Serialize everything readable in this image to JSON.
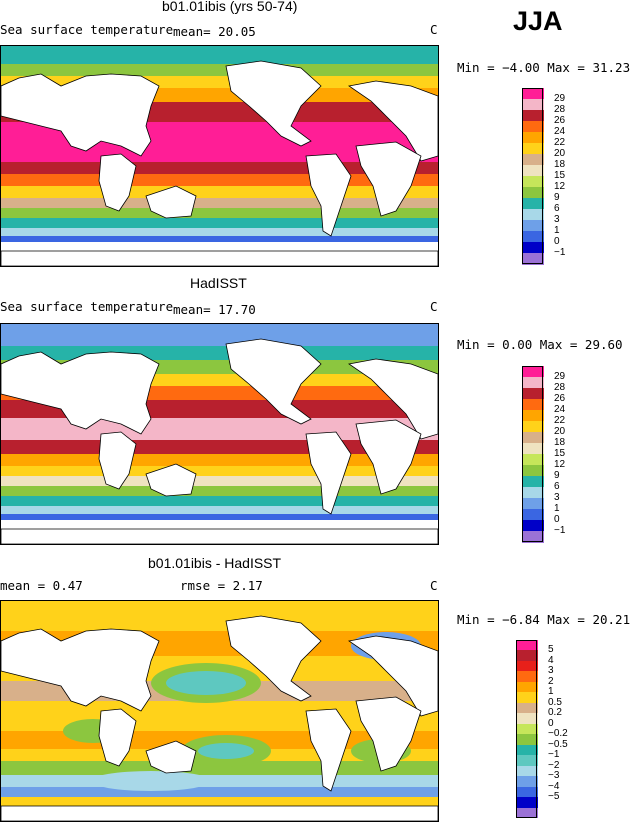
{
  "season": "JJA",
  "colors": {
    "sst_scale": [
      "#9b72d6",
      "#0000c8",
      "#3a66e2",
      "#6ea0e8",
      "#a8d8e8",
      "#26b3a8",
      "#8cc63f",
      "#c6e65a",
      "#efe3c0",
      "#d8b08a",
      "#ffd21a",
      "#ffa500",
      "#ff6a10",
      "#b8202e",
      "#f4b6c8",
      "#ff1e96"
    ],
    "diff_scale": [
      "#9b72d6",
      "#0000c8",
      "#3a66e2",
      "#6ea0e8",
      "#a8d8e8",
      "#5ec8c0",
      "#26b3a8",
      "#8cc63f",
      "#c6e65a",
      "#efe3c0",
      "#d8b08a",
      "#ffd21a",
      "#ffa500",
      "#ff6a10",
      "#e8201a",
      "#b8202e",
      "#ff1e96"
    ],
    "land": "#ffffff"
  },
  "panels": [
    {
      "title": "b01.01ibis (yrs 50-74)",
      "left": "Sea surface temperature",
      "stat": "mean=  20.05",
      "units": "C",
      "minmax": "Min =  −4.00 Max =  31.23",
      "scale": "sst",
      "labels": [
        "29",
        "28",
        "26",
        "24",
        "22",
        "20",
        "18",
        "15",
        "12",
        "9",
        "6",
        "3",
        "1",
        "0",
        "−1"
      ]
    },
    {
      "title": "HadISST",
      "left": "Sea surface temperature",
      "stat": "mean=  17.70",
      "units": "C",
      "minmax": "Min =   0.00 Max =  29.60",
      "scale": "sst",
      "labels": [
        "29",
        "28",
        "26",
        "24",
        "22",
        "20",
        "18",
        "15",
        "12",
        "9",
        "6",
        "3",
        "1",
        "0",
        "−1"
      ]
    },
    {
      "title": "b01.01ibis - HadISST",
      "left": "mean =   0.47",
      "stat": "rmse =   2.17",
      "units": "C",
      "minmax": "Min =  −6.84 Max =  20.21",
      "scale": "diff",
      "labels": [
        "5",
        "4",
        "3",
        "2",
        "1",
        "0.5",
        "0.2",
        "0",
        "−0.2",
        "−0.5",
        "−1",
        "−2",
        "−3",
        "−4",
        "−5"
      ]
    }
  ]
}
